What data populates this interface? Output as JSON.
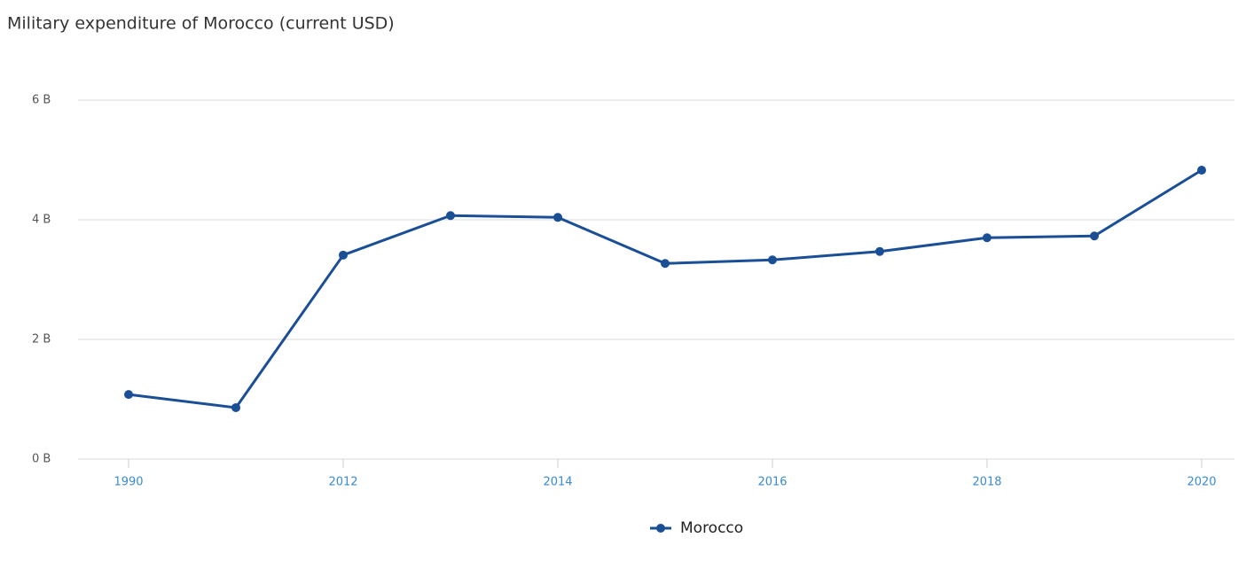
{
  "chart_data": {
    "type": "line",
    "title": "Military expenditure of Morocco (current USD)",
    "categories": [
      "1990",
      null,
      "2012",
      null,
      "2014",
      null,
      "2016",
      null,
      "2018",
      null,
      "2020"
    ],
    "series": [
      {
        "name": "Morocco",
        "color": "#1a4f96",
        "values": [
          1.08,
          0.86,
          3.41,
          4.07,
          4.04,
          3.27,
          3.33,
          3.47,
          3.7,
          3.73,
          4.83
        ]
      }
    ],
    "ylim": [
      0,
      6
    ],
    "yticks": [
      {
        "value": 0,
        "label": "0 B"
      },
      {
        "value": 2,
        "label": "2 B"
      },
      {
        "value": 4,
        "label": "4 B"
      },
      {
        "value": 6,
        "label": "6 B"
      }
    ],
    "grid": true
  }
}
